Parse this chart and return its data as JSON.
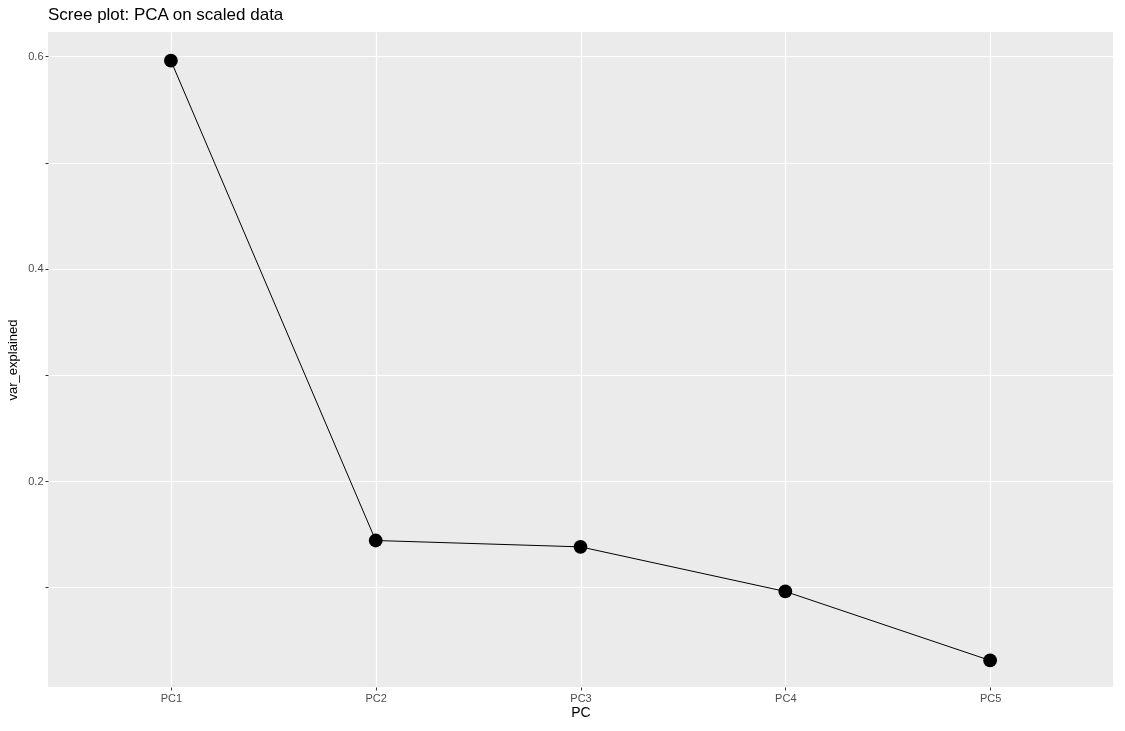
{
  "chart_data": {
    "type": "line",
    "title": "Scree plot: PCA on scaled data",
    "xlabel": "PC",
    "ylabel": "var_explained",
    "categories": [
      "PC1",
      "PC2",
      "PC3",
      "PC4",
      "PC5"
    ],
    "series": [
      {
        "color": "#000000",
        "values": [
          0.596,
          0.144,
          0.138,
          0.096,
          0.031
        ]
      }
    ],
    "ylim": [
      0.006,
      0.623
    ],
    "yticks": [
      {
        "value": 0.1,
        "label": null
      },
      0.2,
      {
        "value": 0.3,
        "label": null
      },
      0.4,
      {
        "value": 0.5,
        "label": null
      },
      0.6
    ],
    "grid": true,
    "marker": "circle",
    "line_style": "solid",
    "legend": false
  }
}
